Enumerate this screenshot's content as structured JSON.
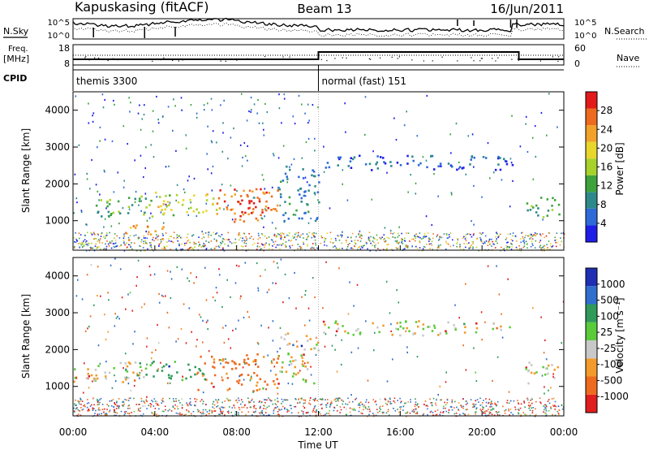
{
  "header": {
    "title": "Kapuskasing (fitACF)",
    "beam": "Beam 13",
    "date": "16/Jun/2011"
  },
  "left_labels": {
    "nsky": "N.Sky",
    "freq": "Freq.",
    "mhz": "[MHz]",
    "cpid": "CPID"
  },
  "right_labels": {
    "nsearch": "N.Search",
    "nave": "Nave"
  },
  "cpid_modes": [
    {
      "label": "themis 3300",
      "start_hour": 0,
      "end_hour": 12
    },
    {
      "label": "normal (fast) 151",
      "start_hour": 12,
      "end_hour": 24
    }
  ],
  "noise_axis": {
    "top": "10^5",
    "bottom": "10^0"
  },
  "freq_axis": {
    "left_ticks": [
      "18",
      "8"
    ],
    "right_ticks": [
      "60",
      "0"
    ]
  },
  "time_axis": {
    "label": "Time UT",
    "ticks": [
      "00:00",
      "04:00",
      "08:00",
      "12:00",
      "16:00",
      "20:00",
      "00:00"
    ]
  },
  "range_axis": {
    "label": "Slant Range [km]",
    "ticks": [
      "1000",
      "2000",
      "3000",
      "4000"
    ]
  },
  "power_colorbar": {
    "label": "Power [dB]",
    "ticks": [
      "4",
      "8",
      "12",
      "16",
      "20",
      "24",
      "28"
    ]
  },
  "velocity_colorbar": {
    "label": "Velocity [m s⁻¹]",
    "ticks": [
      "-1000",
      "-500",
      "-100",
      "-25",
      "25",
      "100",
      "500",
      "1000"
    ]
  },
  "chart_data": [
    {
      "type": "heatmap",
      "name": "power",
      "x_unit": "hours UT",
      "y_unit": "km",
      "xlim": [
        0,
        24
      ],
      "ylim": [
        200,
        4500
      ],
      "zlim": [
        0,
        32
      ],
      "colors": [
        "#1e1ee6",
        "#2e6bd8",
        "#2e8a8a",
        "#3ca33c",
        "#a6d22a",
        "#e8d62a",
        "#f2a12a",
        "#ee6a1e",
        "#e21a1a"
      ],
      "features": [
        {
          "x": [
            1.0,
            4.0
          ],
          "y": [
            1100,
            1700
          ],
          "value": 12
        },
        {
          "x": [
            2.5,
            4.5
          ],
          "y": [
            500,
            900
          ],
          "value": 22
        },
        {
          "x": [
            4.0,
            7.0
          ],
          "y": [
            1100,
            1800
          ],
          "value": 18
        },
        {
          "x": [
            7.0,
            10.0
          ],
          "y": [
            900,
            1900
          ],
          "value": 26
        },
        {
          "x": [
            8.0,
            9.5
          ],
          "y": [
            1100,
            1700
          ],
          "value": 30
        },
        {
          "x": [
            10.0,
            12.0
          ],
          "y": [
            1000,
            2500
          ],
          "value": 8
        },
        {
          "x": [
            12.2,
            21.5
          ],
          "y": [
            2400,
            2800
          ],
          "value": 5
        },
        {
          "x": [
            22.0,
            23.8
          ],
          "y": [
            1100,
            1700
          ],
          "value": 12
        }
      ]
    },
    {
      "type": "heatmap",
      "name": "velocity",
      "x_unit": "hours UT",
      "y_unit": "km",
      "xlim": [
        0,
        24
      ],
      "ylim": [
        200,
        4500
      ],
      "zlim": [
        -1000,
        1000
      ],
      "colors": [
        "#e01e1e",
        "#ee6a1e",
        "#f29a2a",
        "#c8c8c8",
        "#5acb3a",
        "#2f9a5a",
        "#2f6fce",
        "#1e2fb4"
      ],
      "features": [
        {
          "x": [
            0.0,
            3.5
          ],
          "y": [
            1100,
            1700
          ],
          "value": 0
        },
        {
          "x": [
            3.0,
            6.5
          ],
          "y": [
            1200,
            1700
          ],
          "value": 150
        },
        {
          "x": [
            6.0,
            10.0
          ],
          "y": [
            900,
            1900
          ],
          "value": -150
        },
        {
          "x": [
            10.0,
            12.0
          ],
          "y": [
            1100,
            2500
          ],
          "value": 0
        },
        {
          "x": [
            12.2,
            21.5
          ],
          "y": [
            2400,
            2800
          ],
          "value": 0
        },
        {
          "x": [
            22.0,
            23.8
          ],
          "y": [
            1100,
            1700
          ],
          "value": 0
        }
      ]
    }
  ]
}
